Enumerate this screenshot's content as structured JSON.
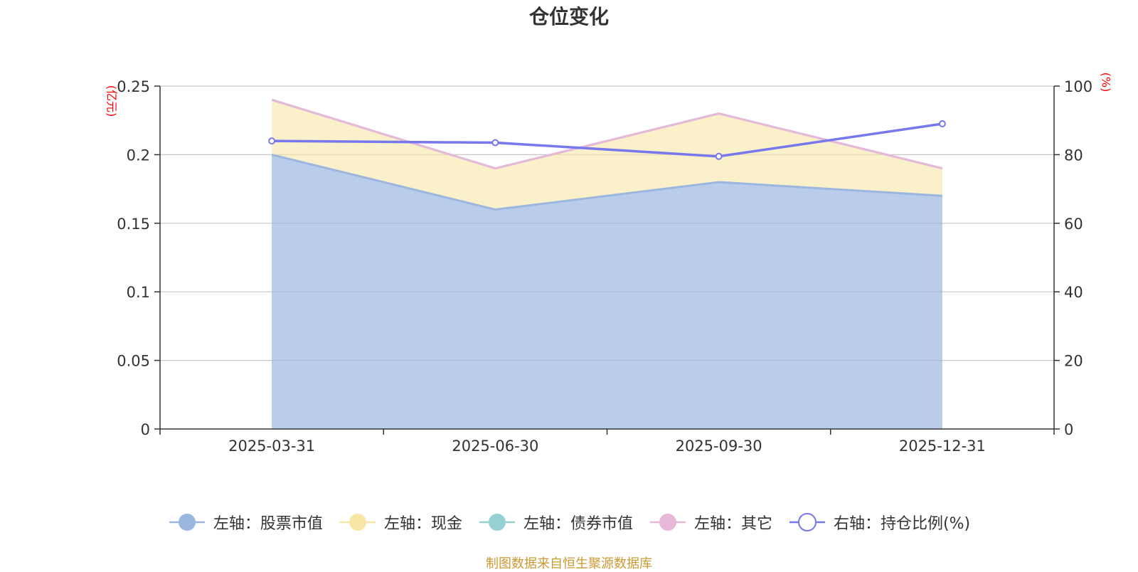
{
  "colors": {
    "stock": "#9bb7e0",
    "cash": "#f7e6a6",
    "bond": "#95d1d3",
    "other": "#e7b8d9",
    "ratio": "#7777ee",
    "axis": "#333333",
    "grid": "#c7c7c7",
    "unit": "#ff0000",
    "source": "#cc9933"
  },
  "chart_data": {
    "type": "area",
    "title": "仓位变化",
    "categories": [
      "2025-03-31",
      "2025-06-30",
      "2025-09-30",
      "2025-12-31"
    ],
    "left_axis": {
      "unit": "(亿元)",
      "range": [
        0,
        0.25
      ],
      "ticks": [
        "0",
        "0.05",
        "0.1",
        "0.15",
        "0.2",
        "0.25"
      ]
    },
    "right_axis": {
      "unit": "(%)",
      "range": [
        0,
        100
      ],
      "ticks": [
        "0",
        "20",
        "40",
        "60",
        "80",
        "100"
      ]
    },
    "series": [
      {
        "name": "左轴：股票市值",
        "key": "stock",
        "axis": "left",
        "stack": true,
        "values": [
          0.2,
          0.16,
          0.18,
          0.17
        ]
      },
      {
        "name": "左轴：现金",
        "key": "cash",
        "axis": "left",
        "stack": true,
        "values": [
          0.04,
          0.03,
          0.05,
          0.02
        ]
      },
      {
        "name": "左轴：债券市值",
        "key": "bond",
        "axis": "left",
        "stack": true,
        "values": [
          0,
          0,
          0,
          0
        ]
      },
      {
        "name": "左轴：其它",
        "key": "other",
        "axis": "left",
        "stack": true,
        "values": [
          0,
          0,
          0,
          0
        ]
      },
      {
        "name": "右轴：持仓比例(%)",
        "key": "ratio",
        "axis": "right",
        "stack": false,
        "values": [
          84.0,
          83.5,
          79.5,
          89.0
        ]
      }
    ],
    "grid": true,
    "legend_position": "bottom"
  },
  "legend": [
    {
      "label": "左轴：股票市值",
      "key": "stock",
      "style": "filled"
    },
    {
      "label": "左轴：现金",
      "key": "cash",
      "style": "filled"
    },
    {
      "label": "左轴：债券市值",
      "key": "bond",
      "style": "filled"
    },
    {
      "label": "左轴：其它",
      "key": "other",
      "style": "filled"
    },
    {
      "label": "右轴：持仓比例(%)",
      "key": "ratio",
      "style": "hollow"
    }
  ],
  "source_note": "制图数据来自恒生聚源数据库"
}
